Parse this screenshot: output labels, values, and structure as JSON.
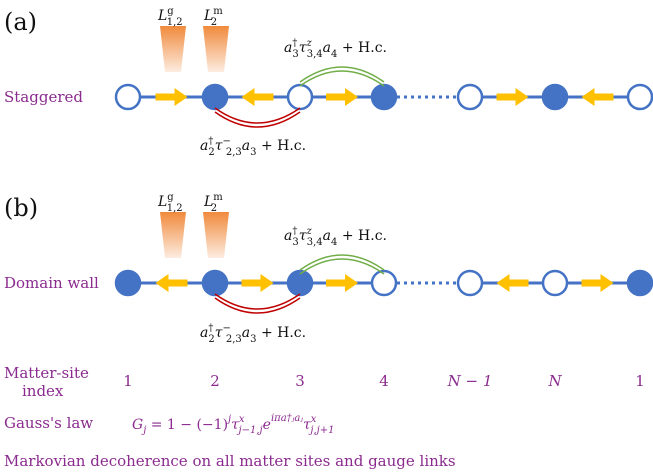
{
  "panels": [
    {
      "label": "(a)",
      "row_label": "Staggered",
      "sites": [
        "empty",
        "filled",
        "empty",
        "filled",
        "empty",
        "filled",
        "empty"
      ],
      "arrows": [
        "right",
        "left",
        "right",
        "right",
        "left"
      ],
      "top_left_term": "L",
      "top_left_sup": "g",
      "top_left_sub": "1,2",
      "top_right_term": "L",
      "top_right_sup": "m",
      "top_right_sub": "2",
      "upper_hop": {
        "pre": "a",
        "dag": "†",
        "sub1": "3",
        "tau": "τ",
        "tsup": "z",
        "tsub": "3,4",
        "post": "a",
        "sub2": "4",
        "hc": " + H.c."
      },
      "lower_hop": {
        "pre": "a",
        "dag": "†",
        "sub1": "2",
        "tau": "τ",
        "tsup": "−",
        "tsub": "2,3",
        "post": "a",
        "sub2": "3",
        "hc": " + H.c."
      }
    },
    {
      "label": "(b)",
      "row_label": "Domain wall",
      "sites": [
        "filled",
        "filled",
        "filled",
        "empty",
        "empty",
        "empty",
        "filled"
      ],
      "arrows": [
        "left",
        "right",
        "right",
        "left",
        "right"
      ],
      "top_left_term": "L",
      "top_left_sup": "g",
      "top_left_sub": "1,2",
      "top_right_term": "L",
      "top_right_sup": "m",
      "top_right_sub": "2",
      "upper_hop": {
        "pre": "a",
        "dag": "†",
        "sub1": "3",
        "tau": "τ",
        "tsup": "z",
        "tsub": "3,4",
        "post": "a",
        "sub2": "4",
        "hc": " + H.c."
      },
      "lower_hop": {
        "pre": "a",
        "dag": "†",
        "sub1": "2",
        "tau": "τ",
        "tsup": "−",
        "tsub": "2,3",
        "post": "a",
        "sub2": "3",
        "hc": " + H.c."
      }
    }
  ],
  "index_row": {
    "label_line1": "Matter-site",
    "label_line2": "index",
    "indices": [
      "1",
      "2",
      "3",
      "4",
      "N − 1",
      "N",
      "1"
    ]
  },
  "gauss": {
    "label": "Gauss's law",
    "lhs": "G",
    "lhs_sub": "j",
    "rhs_a": " = 1 − (−1)",
    "rhs_a_sup": "j",
    "tau": "τ",
    "tau_sup1": "x",
    "tau_sub1": "j−1,j",
    "exp": "e",
    "exp_sup": "iπa†ⱼaⱼ",
    "tau_sup2": "x",
    "tau_sub2": "j,j+1"
  },
  "footer": "Markovian decoherence on all matter sites and gauge links",
  "colors": {
    "site": "#4472c4",
    "arrow": "#ffc000",
    "link": "#4472c4",
    "label": "#8b2b8f",
    "green_arc": "#70ad47",
    "red_arc": "#c00000",
    "beam_top": "#f4a35a",
    "beam_bottom": "#fde9da"
  }
}
